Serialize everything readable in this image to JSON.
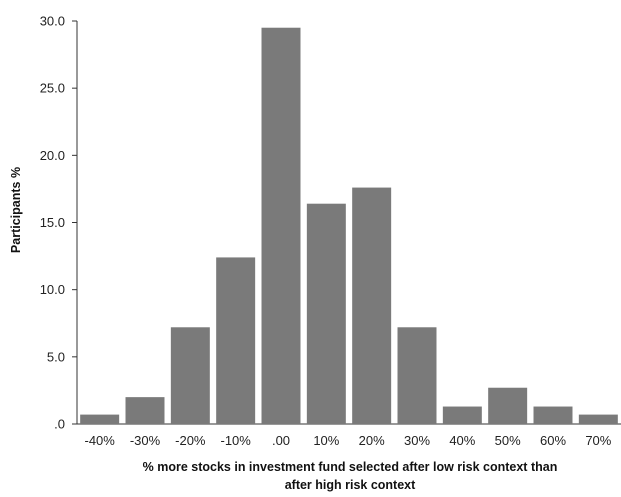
{
  "chart_data": {
    "type": "bar",
    "categories": [
      "-40%",
      "-30%",
      "-20%",
      "-10%",
      ".00",
      "10%",
      "20%",
      "30%",
      "40%",
      "50%",
      "60%",
      "70%"
    ],
    "values": [
      0.7,
      2.0,
      7.2,
      12.4,
      29.5,
      16.4,
      17.6,
      7.2,
      1.3,
      2.7,
      1.3,
      0.7
    ],
    "title": "",
    "xlabel_lines": [
      "% more stocks in investment fund selected after low risk context than",
      "after high risk context"
    ],
    "ylabel": "Participants %",
    "ylim": [
      0,
      30
    ],
    "yticks": [
      ".0",
      "5.0",
      "10.0",
      "15.0",
      "20.0",
      "25.0",
      "30.0"
    ],
    "ytick_values": [
      0,
      5,
      10,
      15,
      20,
      25,
      30
    ],
    "grid": false,
    "legend": "none",
    "bar_color": "#7a7a7a",
    "axis_color": "#333333"
  }
}
